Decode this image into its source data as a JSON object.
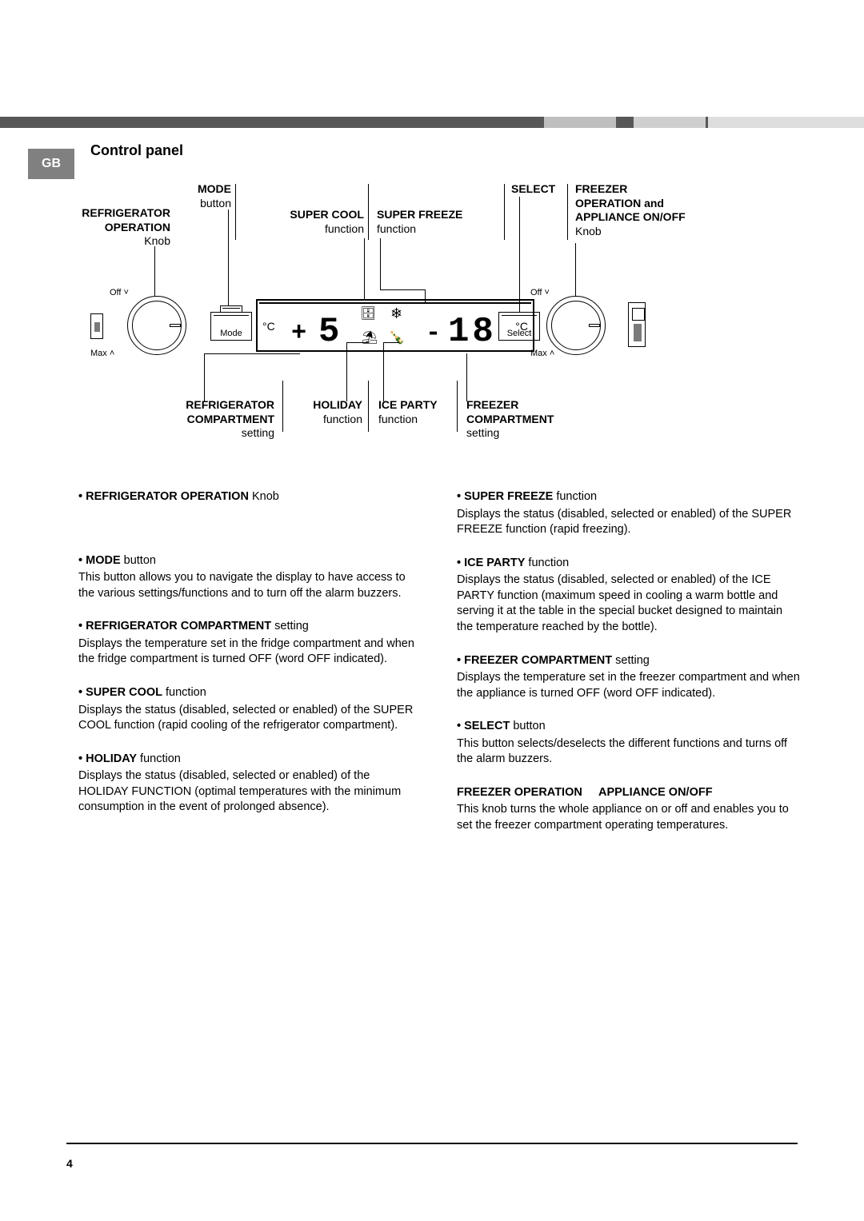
{
  "badge": "GB",
  "title": "Control panel",
  "labels": {
    "top": {
      "refrig_op": {
        "line1": "REFRIGERATOR",
        "line2": "OPERATION",
        "line3": "Knob"
      },
      "mode": {
        "line1": "MODE",
        "line2": "button"
      },
      "super_cool": {
        "line1": "SUPER COOL",
        "line2": "function"
      },
      "super_freeze": {
        "line1": "SUPER FREEZE",
        "line2": "function"
      },
      "select": {
        "line1": "SELECT"
      },
      "freezer_op": {
        "line1": "FREEZER",
        "line2": "OPERATION and",
        "line3": "APPLIANCE ON/OFF",
        "line4": "Knob"
      }
    },
    "bottom": {
      "refrig_comp": {
        "line1": "REFRIGERATOR",
        "line2": "COMPARTMENT",
        "line3": "setting"
      },
      "holiday": {
        "line1": "HOLIDAY",
        "line2": "function"
      },
      "ice_party": {
        "line1": "ICE PARTY",
        "line2": "function"
      },
      "freezer_comp": {
        "line1": "FREEZER",
        "line2": "COMPARTMENT",
        "line3": "setting"
      }
    }
  },
  "display": {
    "degC": "°C",
    "plus": "+",
    "five": "5",
    "minus": "-",
    "eighteen": "18",
    "mode_label": "Mode",
    "select_label": "Select",
    "off": "Off",
    "max": "Max",
    "icon_supercool": "🗄",
    "icon_snow": "❄",
    "icon_holiday": "⛱",
    "icon_ice": "🍾"
  },
  "bullets_left": [
    {
      "bold": "REFRIGERATOR OPERATION",
      "plain": " Knob",
      "body": ""
    },
    {
      "bold": "MODE",
      "plain": " button",
      "body": "This button allows you to navigate the display to have access to the various settings/functions and to turn off the alarm buzzers."
    },
    {
      "bold": "REFRIGERATOR COMPARTMENT",
      "plain": " setting",
      "body": "Displays the temperature set in the fridge compartment and when the fridge compartment is turned OFF (word OFF indicated)."
    },
    {
      "bold": "SUPER COOL",
      "plain": " function",
      "body": "Displays the status (disabled, selected or enabled) of the SUPER COOL function (rapid cooling of the refrigerator compartment)."
    },
    {
      "bold": "HOLIDAY",
      "plain": " function",
      "body": "Displays the status (disabled, selected or enabled) of the HOLIDAY FUNCTION (optimal temperatures with the minimum consumption in the event of prolonged absence)."
    }
  ],
  "bullets_right": [
    {
      "bold": "SUPER FREEZE",
      "plain": " function",
      "body": "Displays the status (disabled, selected or enabled) of the SUPER FREEZE function (rapid freezing)."
    },
    {
      "bold": "ICE PARTY",
      "plain": " function",
      "body": "Displays the status (disabled, selected or enabled) of the ICE PARTY function (maximum speed in cooling a warm bottle and serving it at the table in the special bucket designed to maintain the temperature reached by the bottle)."
    },
    {
      "bold": "FREEZER COMPARTMENT",
      "plain": " setting",
      "body": "Displays the temperature set in the freezer compartment and when the appliance is turned OFF (word OFF indicated)."
    },
    {
      "bold": "SELECT",
      "plain": " button",
      "body": "This button selects/deselects the different functions and turns off the alarm buzzers."
    }
  ],
  "extra_right": {
    "bold1": "FREEZER OPERATION",
    "bold2": "APPLIANCE ON/OFF",
    "body": "This knob turns the whole appliance on or off and enables you to set the freezer compartment operating temperatures."
  },
  "page_number": "4"
}
